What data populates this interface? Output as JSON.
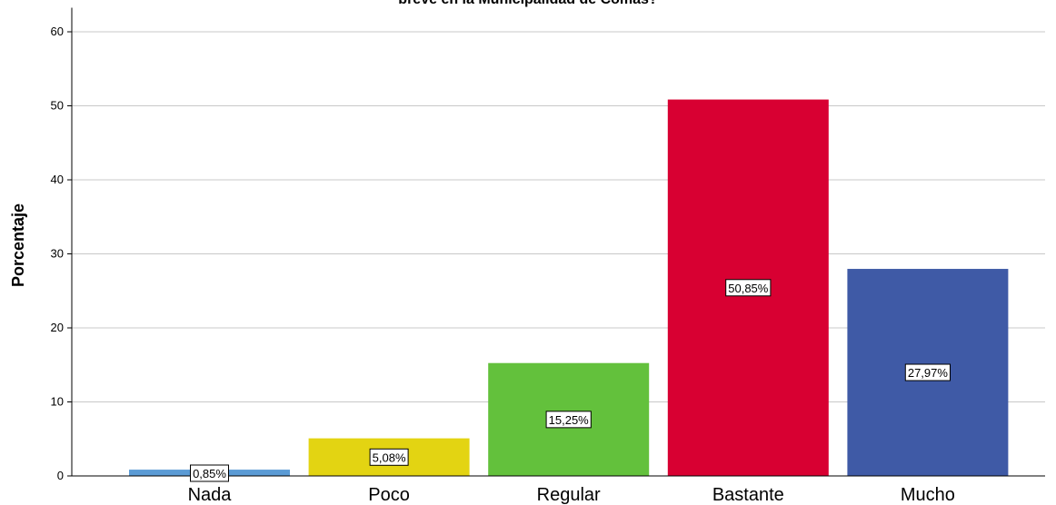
{
  "chart_data": {
    "type": "bar",
    "title": "breve en la Municipalidad de Comas?",
    "xlabel": "",
    "ylabel": "Porcentaje",
    "categories": [
      "Nada",
      "Poco",
      "Regular",
      "Bastante",
      "Mucho"
    ],
    "values": [
      0.85,
      5.08,
      15.25,
      50.85,
      27.97
    ],
    "data_labels": [
      "0,85%",
      "5,08%",
      "15,25%",
      "50,85%",
      "27,97%"
    ],
    "colors": [
      "#5b9bd5",
      "#e3d412",
      "#63c13c",
      "#d80032",
      "#3f5aa6"
    ],
    "ylim": [
      0,
      63
    ],
    "yticks": [
      0,
      10,
      20,
      30,
      40,
      50,
      60
    ],
    "grid": true,
    "gridline_color": "#c8c8c8",
    "legend": "none"
  }
}
